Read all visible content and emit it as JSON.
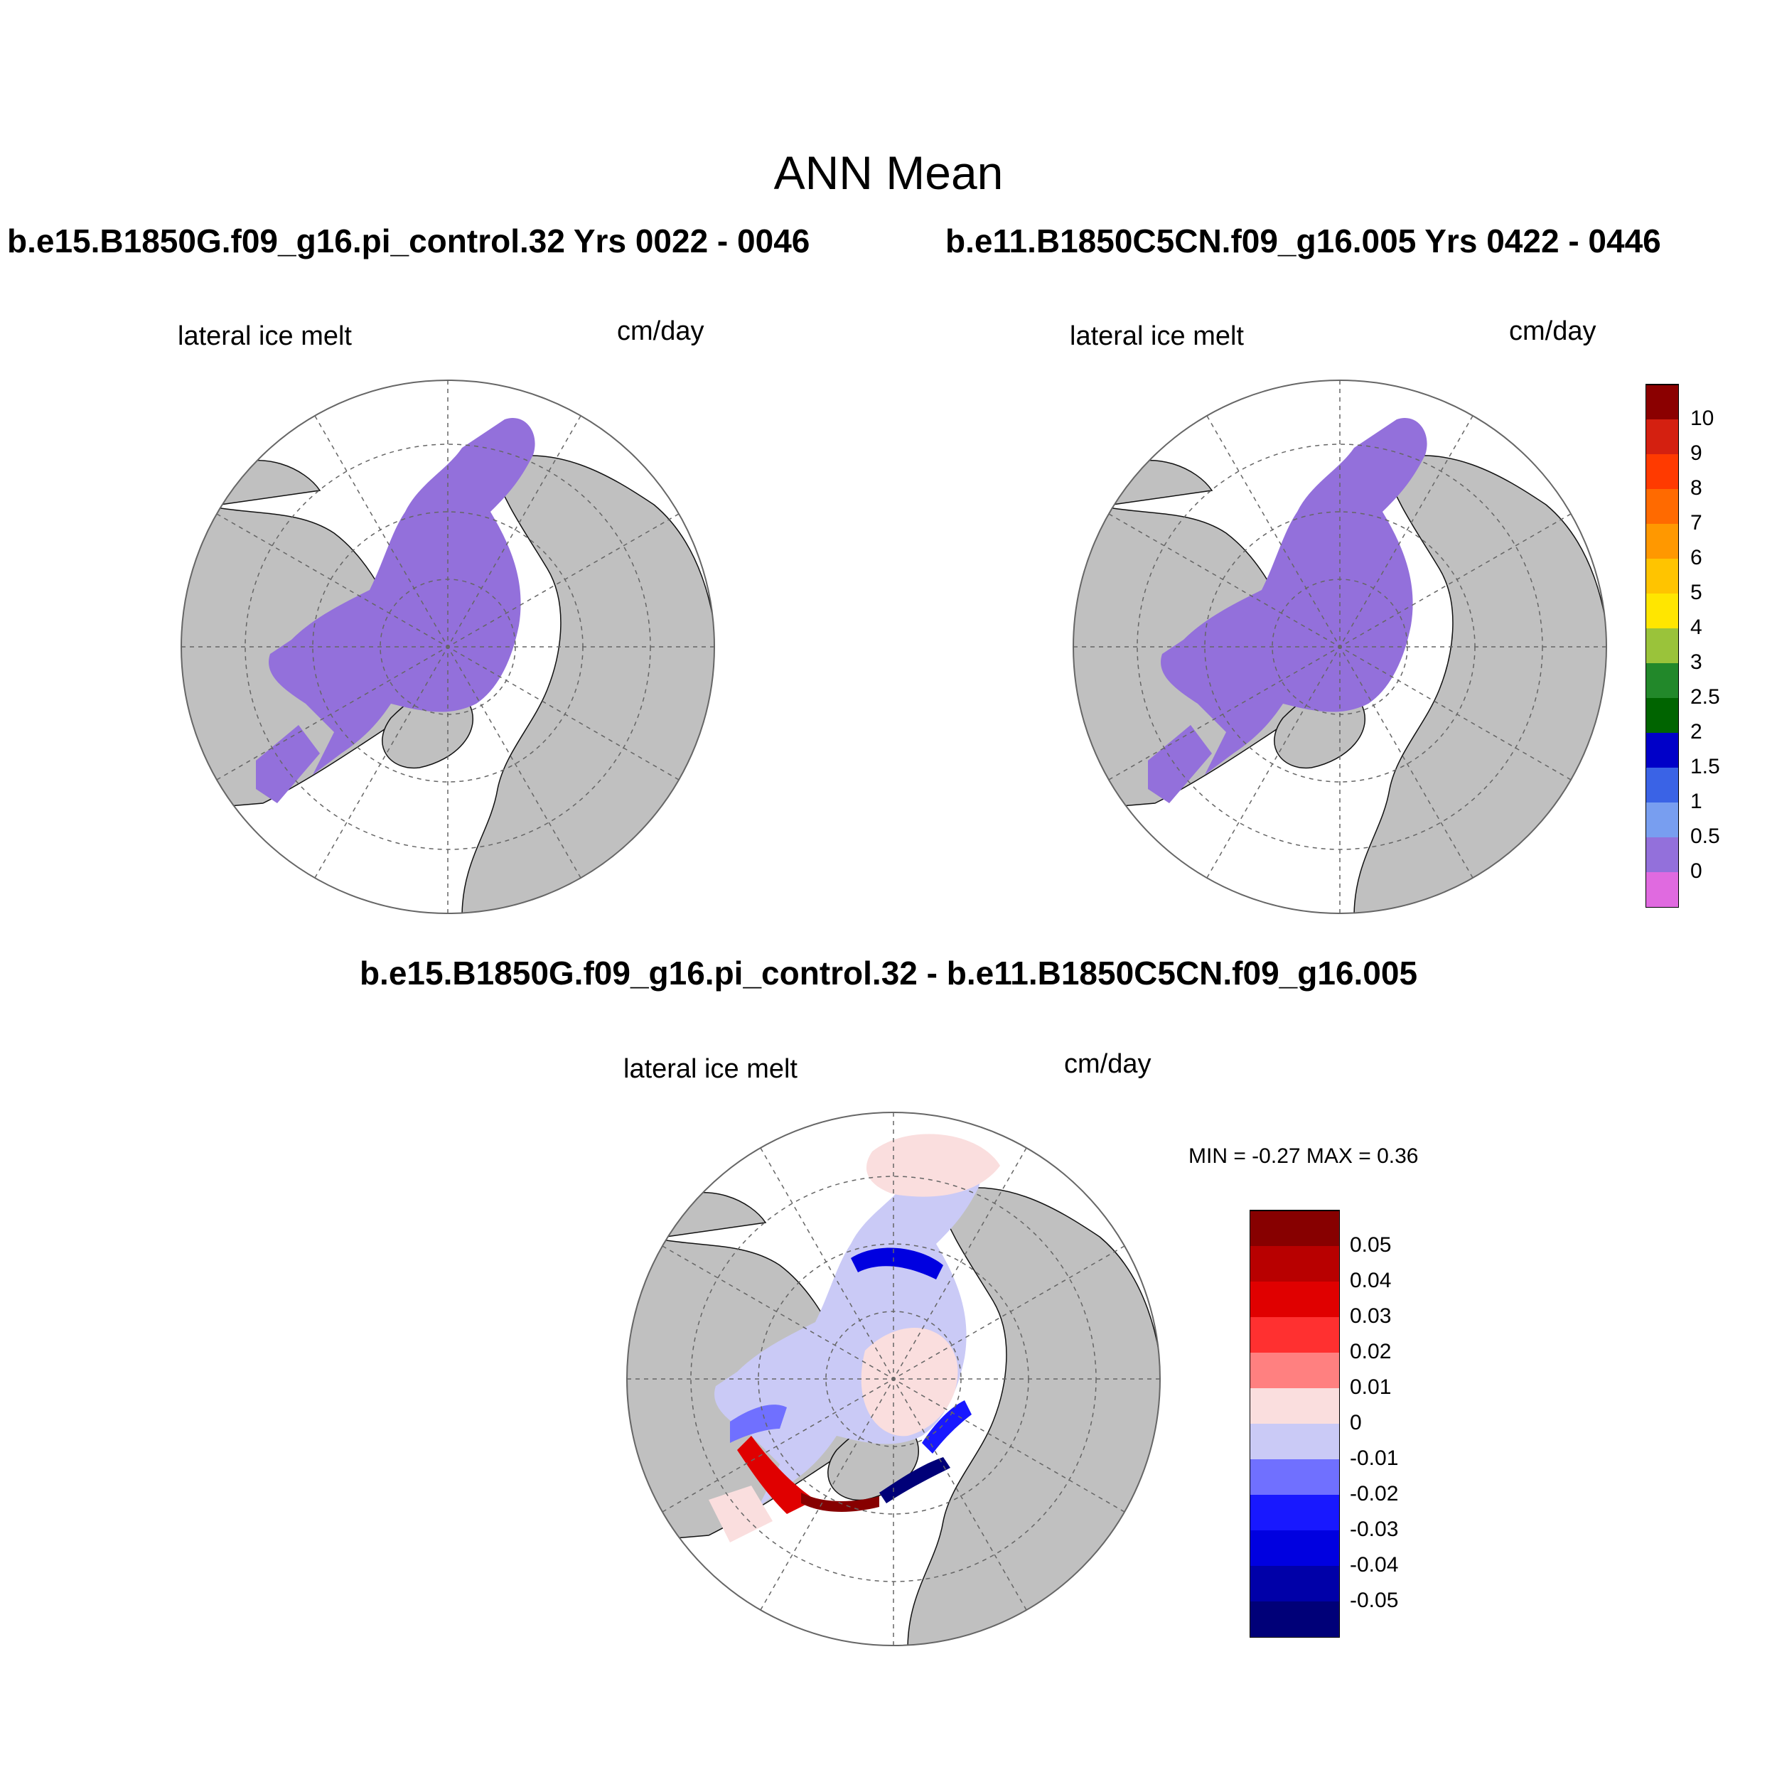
{
  "title": "ANN Mean",
  "panels": {
    "left_case": "b.e15.B1850G.f09_g16.pi_control.32  Yrs 0022 - 0046",
    "right_case": "b.e11.B1850C5CN.f09_g16.005  Yrs 0422 - 0446",
    "diff_case": "b.e15.B1850G.f09_g16.pi_control.32 - b.e11.B1850C5CN.f09_g16.005"
  },
  "variable": {
    "name": "lateral ice melt",
    "units": "cm/day"
  },
  "diff_stats": {
    "text": "MIN =  -0.27 MAX =   0.36",
    "min": -0.27,
    "max": 0.36
  },
  "colors": {
    "land": "#c0c0c0",
    "ocean": "#ffffff",
    "ice_field": "#9370db"
  },
  "colorbar_main": {
    "labels": [
      "10",
      "9",
      "8",
      "7",
      "6",
      "5",
      "4",
      "3",
      "2.5",
      "2",
      "1.5",
      "1",
      "0.5",
      "0"
    ],
    "colors": [
      "#8b0000",
      "#d42010",
      "#ff3a00",
      "#ff6a00",
      "#ff9800",
      "#ffc400",
      "#ffe600",
      "#9ac33a",
      "#22882a",
      "#006400",
      "#0000c8",
      "#3a63e6",
      "#789ef0",
      "#9370db",
      "#e06ae0"
    ]
  },
  "colorbar_diff": {
    "labels": [
      "0.05",
      "0.04",
      "0.03",
      "0.02",
      "0.01",
      "0",
      "-0.01",
      "-0.02",
      "-0.03",
      "-0.04",
      "-0.05"
    ],
    "colors": [
      "#870000",
      "#b80000",
      "#e00000",
      "#ff3030",
      "#ff8080",
      "#fadede",
      "#cacaf6",
      "#7070ff",
      "#1818ff",
      "#0000e0",
      "#0000a8",
      "#000078"
    ]
  }
}
